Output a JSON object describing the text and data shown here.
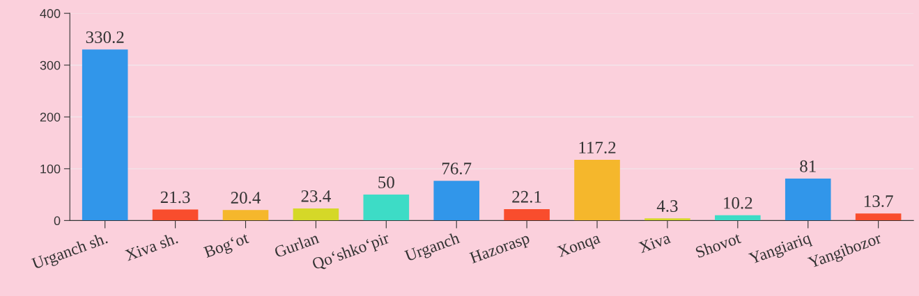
{
  "chart_data": {
    "type": "bar",
    "categories": [
      "Urganch sh.",
      "Xiva sh.",
      "Bog‘ot",
      "Gurlan",
      "Qo‘shko‘pir",
      "Urganch",
      "Hazorasp",
      "Xonqa",
      "Xiva",
      "Shovot",
      "Yangiariq",
      "Yangibozor"
    ],
    "values": [
      330.2,
      21.3,
      20.4,
      23.4,
      50,
      76.7,
      22.1,
      117.2,
      4.3,
      10.2,
      81,
      13.7
    ],
    "colors": [
      "#3196ea",
      "#f94d2d",
      "#f5b72c",
      "#d5d828",
      "#3ddcc6",
      "#3196ea",
      "#f94d2d",
      "#f5b72c",
      "#d5d828",
      "#3ddcc6",
      "#3196ea",
      "#f94d2d"
    ],
    "ylim": [
      0,
      400
    ],
    "yticks": [
      0,
      100,
      200,
      300,
      400
    ],
    "grid": "y",
    "data_labels": true
  }
}
